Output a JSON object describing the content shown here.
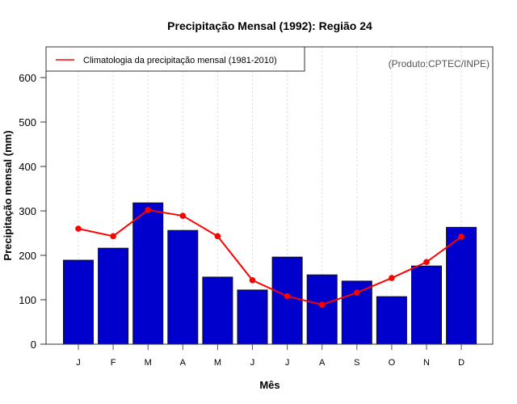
{
  "chart_data": {
    "type": "bar",
    "title": "Precipitação Mensal (1992): Região 24",
    "xlabel": "Mês",
    "ylabel": "Precipitação mensal (mm)",
    "ylim": [
      0,
      660
    ],
    "yticks": [
      0,
      100,
      200,
      300,
      400,
      500,
      600
    ],
    "ytick_labels": [
      "0",
      "100",
      "200",
      "300",
      "400",
      "500",
      "600"
    ],
    "categories": [
      "J",
      "F",
      "M",
      "A",
      "M",
      "J",
      "J",
      "A",
      "S",
      "O",
      "N",
      "D"
    ],
    "grid": "vertical dotted",
    "series": [
      {
        "name": "Precipitação mensal (1992)",
        "type": "bar",
        "color": "#0000cd",
        "values": [
          189,
          216,
          318,
          256,
          151,
          122,
          196,
          156,
          142,
          107,
          176,
          263
        ]
      },
      {
        "name": "Climatologia da precipitação mensal (1981-2010)",
        "type": "line",
        "color": "#ff0000",
        "values": [
          260,
          243,
          302,
          289,
          243,
          144,
          108,
          89,
          116,
          149,
          185,
          242
        ]
      }
    ],
    "legend": {
      "position": "top-left",
      "entries": [
        "Climatologia da precipitação mensal (1981-2010)"
      ]
    },
    "annotation": "(Produto:CPTEC/INPE)"
  }
}
